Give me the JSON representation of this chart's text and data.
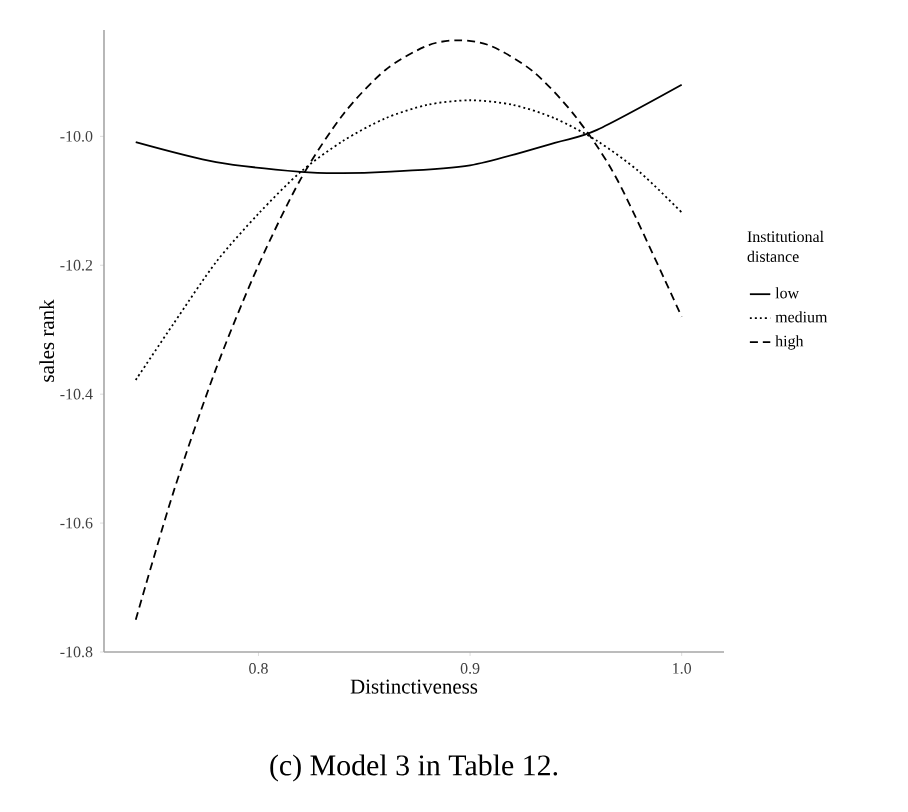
{
  "chart_data": {
    "type": "line",
    "xlabel": "Distinctiveness",
    "ylabel": "sales rank",
    "legend_title": "Institutional distance",
    "annotations": [
      "(c) Model 3 in Table 12."
    ],
    "xlim": [
      0.727,
      1.02
    ],
    "ylim": [
      -10.8,
      -9.835
    ],
    "xticks": [
      0.8,
      0.9,
      {
        "value": 1.0,
        "label": "1.0"
      }
    ],
    "yticks": [
      {
        "value": -10.8,
        "label": "-10.8"
      },
      {
        "value": -10.6,
        "label": "-10.6"
      },
      {
        "value": -10.4,
        "label": "-10.4"
      },
      {
        "value": -10.2,
        "label": "-10.2"
      },
      {
        "value": -10.0,
        "label": "-10.0"
      }
    ],
    "grid": false,
    "legend": "right",
    "marker": "none",
    "series": [
      {
        "name": "low",
        "color": "#000000",
        "line_style": "solid",
        "x": [
          0.742,
          0.78,
          0.82,
          0.84,
          0.86,
          0.9,
          0.94,
          0.96,
          1.0
        ],
        "values": [
          -10.009,
          -10.04,
          -10.055,
          -10.057,
          -10.055,
          -10.045,
          -10.01,
          -9.99,
          -9.92
        ]
      },
      {
        "name": "medium",
        "color": "#000000",
        "line_style": "dotted",
        "x": [
          0.742,
          0.76,
          0.78,
          0.8,
          0.82,
          0.84,
          0.86,
          0.88,
          0.9,
          0.92,
          0.94,
          0.96,
          0.98,
          1.0
        ],
        "values": [
          -10.378,
          -10.29,
          -10.195,
          -10.12,
          -10.055,
          -10.007,
          -9.972,
          -9.951,
          -9.944,
          -9.951,
          -9.972,
          -10.007,
          -10.055,
          -10.118
        ]
      },
      {
        "name": "high",
        "color": "#000000",
        "line_style": "dashed",
        "x": [
          0.742,
          0.76,
          0.78,
          0.8,
          0.82,
          0.84,
          0.86,
          0.88,
          0.895,
          0.91,
          0.93,
          0.95,
          0.97,
          1.0
        ],
        "values": [
          -10.75,
          -10.55,
          -10.36,
          -10.2,
          -10.066,
          -9.966,
          -9.897,
          -9.859,
          -9.851,
          -9.86,
          -9.9,
          -9.97,
          -10.07,
          -10.28
        ]
      }
    ]
  }
}
